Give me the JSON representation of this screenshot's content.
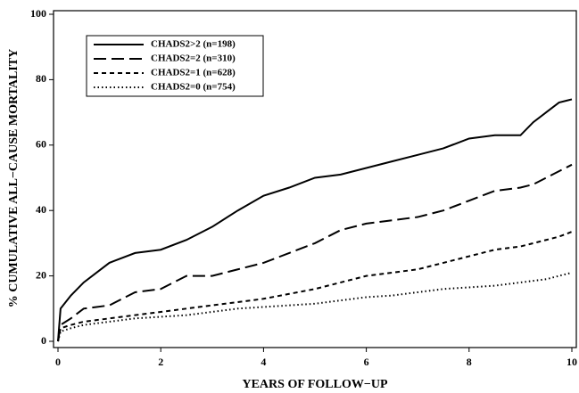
{
  "chart_data": {
    "type": "line",
    "xlabel": "YEARS OF FOLLOW−UP",
    "ylabel": "% CUMULATIVE ALL−CAUSE MORTALITY",
    "x": [
      0,
      0.05,
      0.25,
      0.5,
      0.75,
      1,
      1.5,
      2,
      2.5,
      3,
      3.5,
      4,
      4.5,
      5,
      5.5,
      6,
      6.5,
      7,
      7.5,
      8,
      8.5,
      9,
      9.25,
      9.5,
      9.75,
      10
    ],
    "series": [
      {
        "name": "CHADS2>2 (n=198)",
        "color": "#000000",
        "dash": "solid",
        "values": [
          0,
          10,
          14,
          18,
          21,
          24,
          27,
          28,
          31,
          35,
          40,
          44.5,
          47,
          50,
          51,
          53,
          55,
          57,
          59,
          62,
          63,
          63,
          67,
          70,
          73,
          74
        ]
      },
      {
        "name": "CHADS2=2 (n=310)",
        "color": "#000000",
        "dash": "long",
        "values": [
          0,
          5,
          7,
          10,
          10.5,
          11,
          15,
          16,
          20,
          20,
          22,
          24,
          27,
          30,
          34,
          36,
          37,
          38,
          40,
          43,
          46,
          47,
          48,
          50,
          52,
          54
        ]
      },
      {
        "name": "CHADS2=1 (n=628)",
        "color": "#000000",
        "dash": "short",
        "values": [
          0,
          4,
          5,
          6,
          6.5,
          7,
          8,
          9,
          10,
          11,
          12,
          13,
          14.5,
          16,
          18,
          20,
          21,
          22,
          24,
          26,
          28,
          29,
          30,
          31,
          32,
          33.5
        ]
      },
      {
        "name": "CHADS2=0 (n=754)",
        "color": "#000000",
        "dash": "dotted",
        "values": [
          0,
          3,
          4,
          5,
          5.5,
          6,
          7,
          7.5,
          8,
          9,
          10,
          10.5,
          11,
          11.5,
          12.5,
          13.5,
          14,
          15,
          16,
          16.5,
          17,
          18,
          18.5,
          19,
          20,
          21
        ]
      }
    ],
    "xlim": [
      0,
      10
    ],
    "xticks": [
      0,
      2,
      4,
      6,
      8,
      10
    ],
    "ylim": [
      0,
      100
    ],
    "yticks": [
      0,
      20,
      40,
      60,
      80,
      100
    ],
    "legend": "upper left"
  }
}
